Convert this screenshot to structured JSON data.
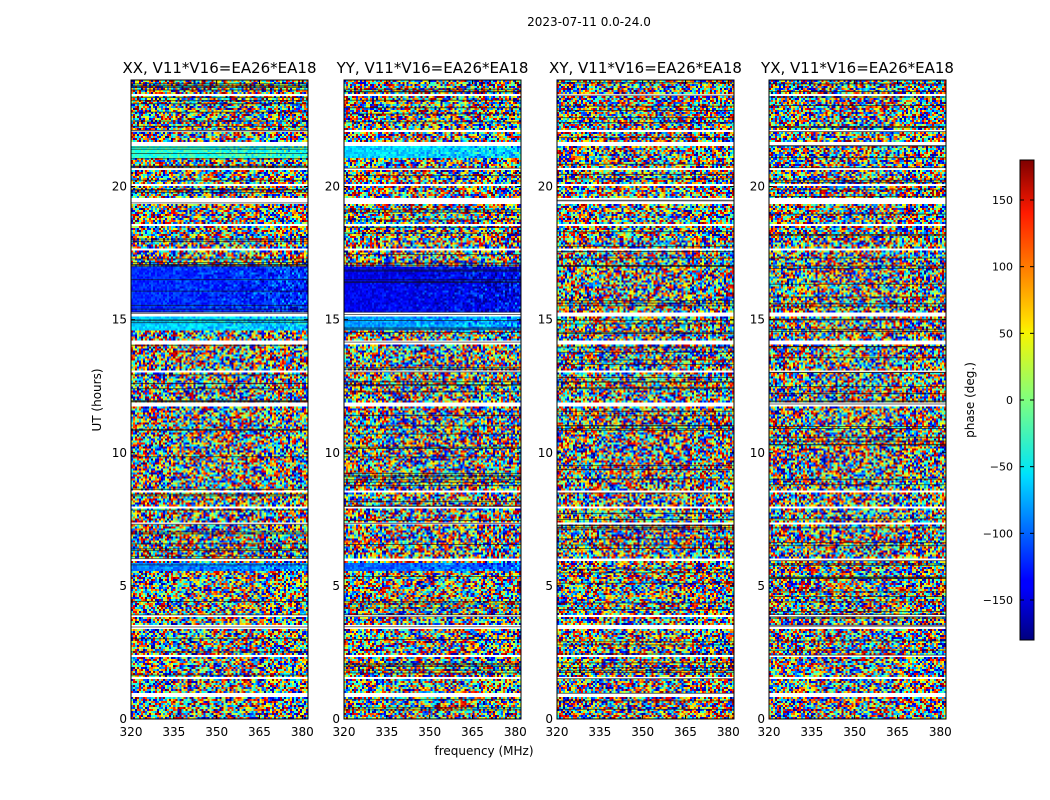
{
  "chart_data": {
    "type": "heatmap",
    "title": "2023-07-11 0.0-24.0",
    "xlabel": "frequency (MHz)",
    "ylabel": "UT (hours)",
    "xlim": [
      320,
      382
    ],
    "ylim": [
      0,
      24
    ],
    "x_ticks": [
      320,
      335,
      350,
      365,
      380
    ],
    "y_ticks": [
      0,
      5,
      10,
      15,
      20
    ],
    "colormap": "jet",
    "grid": false,
    "colorbar": {
      "label": "phase (deg.)",
      "range": [
        -180,
        180
      ],
      "ticks": [
        -150,
        -100,
        -50,
        0,
        50,
        100,
        150
      ],
      "tick_labels": [
        "−150",
        "−100",
        "−50",
        "0",
        "50",
        "100",
        "150"
      ]
    },
    "panels": [
      {
        "title": "XX, V11*V16=EA26*EA18",
        "coherent_bands": [
          {
            "ut_range": [
              14.6,
              15.1
            ],
            "phase_deg": -60
          },
          {
            "ut_range": [
              15.3,
              17.0
            ],
            "phase_deg": -120
          },
          {
            "ut_range": [
              5.6,
              5.9
            ],
            "phase_deg": -90
          },
          {
            "ut_range": [
              21.1,
              21.5
            ],
            "phase_deg": -30
          }
        ]
      },
      {
        "title": "YY, V11*V16=EA26*EA18",
        "coherent_bands": [
          {
            "ut_range": [
              14.6,
              15.1
            ],
            "phase_deg": -80
          },
          {
            "ut_range": [
              15.3,
              17.0
            ],
            "phase_deg": -140
          },
          {
            "ut_range": [
              5.6,
              5.9
            ],
            "phase_deg": -100
          },
          {
            "ut_range": [
              21.1,
              21.5
            ],
            "phase_deg": -60
          }
        ]
      },
      {
        "title": "XY, V11*V16=EA26*EA18",
        "coherent_bands": []
      },
      {
        "title": "YX, V11*V16=EA26*EA18",
        "coherent_bands": []
      }
    ],
    "flagged_ut_intervals": [
      [
        0.8,
        0.95
      ],
      [
        1.5,
        1.6
      ],
      [
        2.3,
        2.4
      ],
      [
        3.4,
        3.5
      ],
      [
        3.8,
        3.9
      ],
      [
        5.95,
        6.05
      ],
      [
        7.3,
        7.4
      ],
      [
        7.9,
        8.0
      ],
      [
        8.5,
        8.6
      ],
      [
        11.7,
        11.9
      ],
      [
        13.0,
        13.1
      ],
      [
        14.1,
        14.2
      ],
      [
        15.1,
        15.3
      ],
      [
        17.6,
        17.7
      ],
      [
        18.5,
        18.6
      ],
      [
        19.35,
        19.55
      ],
      [
        20.0,
        20.1
      ],
      [
        20.6,
        20.7
      ],
      [
        21.55,
        21.65
      ],
      [
        22.05,
        22.15
      ],
      [
        23.4,
        23.5
      ]
    ]
  }
}
